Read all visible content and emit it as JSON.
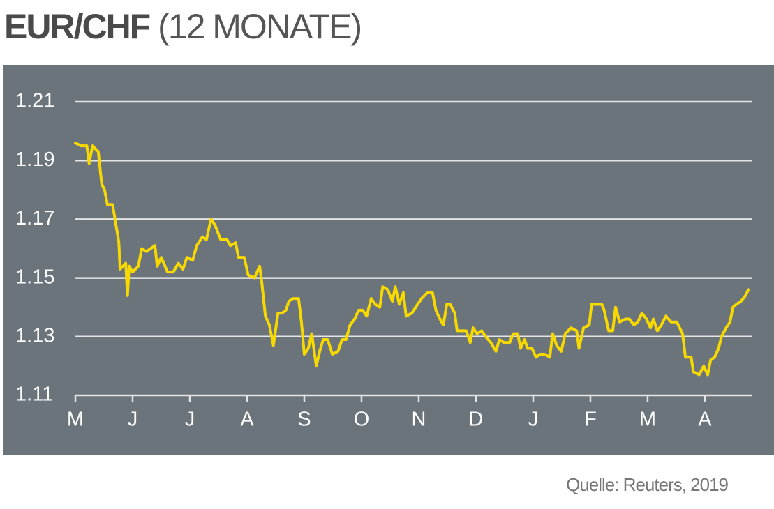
{
  "chart_data": {
    "type": "line",
    "title": "EUR/CHF",
    "subtitle": "(12 MONATE)",
    "source": "Quelle: Reuters, 2019",
    "color": "#f7d900",
    "grid": true,
    "xlim": [
      0,
      11.83
    ],
    "xticks": [
      {
        "value": 0,
        "label": "M"
      },
      {
        "value": 1,
        "label": "J"
      },
      {
        "value": 2,
        "label": "J"
      },
      {
        "value": 3,
        "label": "A"
      },
      {
        "value": 4,
        "label": "S"
      },
      {
        "value": 5,
        "label": "O"
      },
      {
        "value": 6,
        "label": "N"
      },
      {
        "value": 7,
        "label": "D"
      },
      {
        "value": 8,
        "label": "J"
      },
      {
        "value": 9,
        "label": "F"
      },
      {
        "value": 10,
        "label": "M"
      },
      {
        "value": 11,
        "label": "A"
      }
    ],
    "ylim": [
      1.11,
      1.21
    ],
    "yticks": [
      1.11,
      1.13,
      1.15,
      1.17,
      1.19,
      1.21
    ],
    "x": [
      0,
      0.1,
      0.2,
      0.24,
      0.3,
      0.4,
      0.46,
      0.51,
      0.56,
      0.65,
      0.71,
      0.76,
      0.78,
      0.88,
      0.91,
      0.94,
      1.0,
      1.1,
      1.16,
      1.24,
      1.39,
      1.43,
      1.5,
      1.61,
      1.71,
      1.8,
      1.88,
      1.95,
      2.05,
      2.12,
      2.22,
      2.29,
      2.37,
      2.44,
      2.54,
      2.65,
      2.71,
      2.8,
      2.85,
      2.95,
      3.02,
      3.13,
      3.22,
      3.26,
      3.32,
      3.39,
      3.46,
      3.54,
      3.61,
      3.68,
      3.73,
      3.8,
      3.9,
      3.95,
      4.0,
      4.07,
      4.13,
      4.21,
      4.27,
      4.33,
      4.41,
      4.49,
      4.59,
      4.66,
      4.73,
      4.8,
      4.88,
      4.95,
      5.02,
      5.09,
      5.17,
      5.24,
      5.32,
      5.37,
      5.46,
      5.54,
      5.59,
      5.66,
      5.73,
      5.78,
      5.88,
      5.98,
      6.05,
      6.15,
      6.24,
      6.3,
      6.37,
      6.43,
      6.49,
      6.55,
      6.63,
      6.67,
      6.76,
      6.83,
      6.9,
      6.95,
      7.02,
      7.1,
      7.17,
      7.26,
      7.35,
      7.41,
      7.49,
      7.59,
      7.65,
      7.73,
      7.78,
      7.85,
      7.9,
      7.98,
      8.05,
      8.12,
      8.2,
      8.29,
      8.34,
      8.41,
      8.49,
      8.56,
      8.66,
      8.76,
      8.8,
      8.88,
      8.98,
      9.02,
      9.12,
      9.2,
      9.24,
      9.32,
      9.39,
      9.44,
      9.51,
      9.61,
      9.68,
      9.76,
      9.83,
      9.9,
      9.98,
      10.05,
      10.1,
      10.17,
      10.24,
      10.32,
      10.41,
      10.51,
      10.61,
      10.66,
      10.76,
      10.8,
      10.9,
      10.98,
      11.05,
      11.1,
      11.17,
      11.24,
      11.29,
      11.37,
      11.44,
      11.49,
      11.55,
      11.63,
      11.71,
      11.76
    ],
    "values": [
      1.196,
      1.195,
      1.195,
      1.189,
      1.195,
      1.193,
      1.182,
      1.18,
      1.175,
      1.175,
      1.168,
      1.162,
      1.153,
      1.155,
      1.144,
      1.154,
      1.152,
      1.154,
      1.16,
      1.159,
      1.161,
      1.154,
      1.157,
      1.152,
      1.152,
      1.155,
      1.153,
      1.157,
      1.156,
      1.161,
      1.164,
      1.163,
      1.17,
      1.168,
      1.163,
      1.163,
      1.161,
      1.162,
      1.157,
      1.157,
      1.151,
      1.15,
      1.154,
      1.148,
      1.137,
      1.134,
      1.127,
      1.138,
      1.138,
      1.139,
      1.142,
      1.143,
      1.143,
      1.135,
      1.124,
      1.126,
      1.131,
      1.12,
      1.125,
      1.129,
      1.129,
      1.124,
      1.125,
      1.129,
      1.129,
      1.134,
      1.136,
      1.139,
      1.139,
      1.137,
      1.143,
      1.141,
      1.14,
      1.147,
      1.146,
      1.142,
      1.147,
      1.141,
      1.145,
      1.137,
      1.138,
      1.141,
      1.143,
      1.145,
      1.145,
      1.139,
      1.136,
      1.134,
      1.141,
      1.141,
      1.138,
      1.132,
      1.132,
      1.132,
      1.128,
      1.133,
      1.131,
      1.132,
      1.13,
      1.128,
      1.125,
      1.129,
      1.128,
      1.128,
      1.131,
      1.131,
      1.126,
      1.129,
      1.126,
      1.126,
      1.123,
      1.124,
      1.124,
      1.123,
      1.131,
      1.127,
      1.125,
      1.131,
      1.133,
      1.132,
      1.126,
      1.133,
      1.134,
      1.141,
      1.141,
      1.141,
      1.139,
      1.132,
      1.132,
      1.14,
      1.135,
      1.136,
      1.136,
      1.134,
      1.135,
      1.138,
      1.136,
      1.133,
      1.136,
      1.132,
      1.134,
      1.137,
      1.135,
      1.135,
      1.131,
      1.123,
      1.123,
      1.118,
      1.117,
      1.12,
      1.117,
      1.122,
      1.123,
      1.126,
      1.13,
      1.133,
      1.135,
      1.14,
      1.141,
      1.142,
      1.144,
      1.146
    ]
  }
}
